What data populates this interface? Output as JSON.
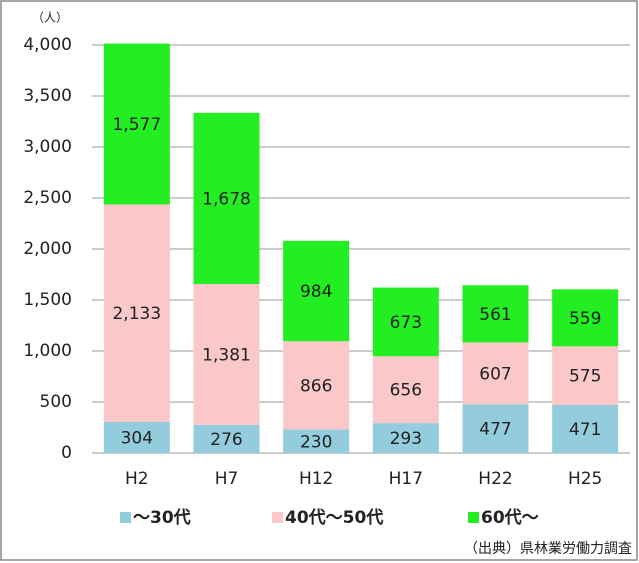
{
  "chart_data": {
    "type": "stacked_bar",
    "unit_label": "（人）",
    "source": "（出典）県林業労働力調査",
    "categories": [
      "H2",
      "H7",
      "H12",
      "H17",
      "H22",
      "H25"
    ],
    "series": [
      {
        "name": "～30代",
        "color": "#93cddd",
        "values": [
          304,
          276,
          230,
          293,
          477,
          471
        ],
        "value_labels": [
          "304",
          "276",
          "230",
          "293",
          "477",
          "471"
        ]
      },
      {
        "name": "40代～50代",
        "color": "#fac8c8",
        "values": [
          2133,
          1381,
          866,
          656,
          607,
          575
        ],
        "value_labels": [
          "2,133",
          "1,381",
          "866",
          "656",
          "607",
          "575"
        ]
      },
      {
        "name": "60代～",
        "color": "#22ee22",
        "values": [
          1577,
          1678,
          984,
          673,
          561,
          559
        ],
        "value_labels": [
          "1,577",
          "1,678",
          "984",
          "673",
          "561",
          "559"
        ]
      }
    ],
    "ylim": [
      0,
      4000
    ],
    "yticks": [
      0,
      500,
      {
        "value": 1000,
        "label": "1,000"
      },
      {
        "value": 1500,
        "label": "1,500"
      },
      {
        "value": 2000,
        "label": "2,000"
      },
      {
        "value": 2500,
        "label": "2,500"
      },
      {
        "value": 3000,
        "label": "3,000"
      },
      {
        "value": 3500,
        "label": "3,500"
      },
      {
        "value": 4000,
        "label": "4,000"
      }
    ],
    "grid": true,
    "legend": "bottom"
  }
}
